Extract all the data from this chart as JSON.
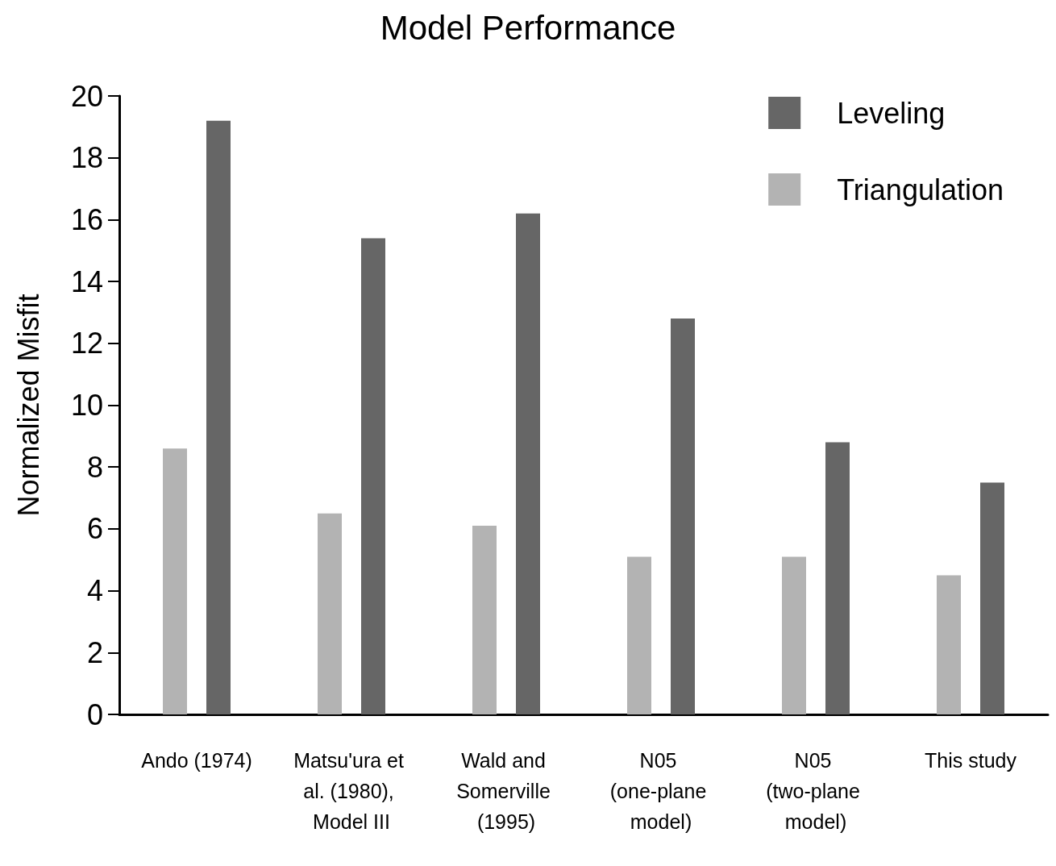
{
  "chart_data": {
    "type": "bar",
    "title": "Model Performance",
    "ylabel": "Normalized Misfit",
    "categories": [
      "Ando (1974)",
      "Matsu'ura et al. (1980), Model III",
      "Wald and Somerville (1995)",
      "N05 (one-plane model)",
      "N05 (two-plane model)",
      "This study"
    ],
    "series": [
      {
        "name": "Triangulation",
        "color": "#b3b3b3",
        "values": [
          8.6,
          6.5,
          6.1,
          5.1,
          5.1,
          4.5
        ]
      },
      {
        "name": "Leveling",
        "color": "#666666",
        "values": [
          19.2,
          15.4,
          16.2,
          12.8,
          8.8,
          7.5
        ]
      }
    ],
    "ylim": [
      0,
      20
    ],
    "yticks": [
      0,
      2,
      4,
      6,
      8,
      10,
      12,
      14,
      16,
      18,
      20
    ],
    "grid": false,
    "legend": "top right"
  }
}
